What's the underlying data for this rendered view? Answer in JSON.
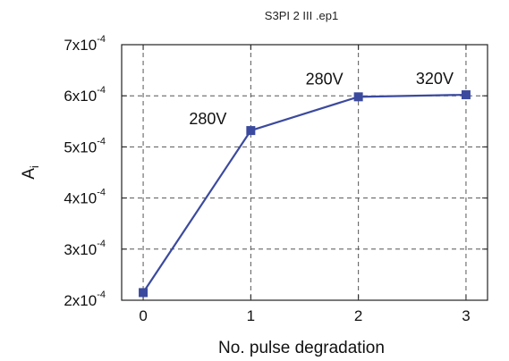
{
  "chart_data": {
    "type": "line",
    "title": "S3PI 2 III .ep1",
    "xlabel": "No. pulse degradation",
    "ylabel": "A",
    "ylabel_sub": "i",
    "x": [
      0,
      1,
      2,
      3
    ],
    "series": [
      {
        "values": [
          0.000215,
          0.000532,
          0.000598,
          0.000602
        ]
      }
    ],
    "xlim": [
      -0.2,
      3.2
    ],
    "ylim": [
      0.0002,
      0.0007
    ],
    "xticks": [
      0,
      1,
      2,
      3
    ],
    "yticks": [
      {
        "value": 0.0002,
        "mantissa": "2x10",
        "exp": "-4"
      },
      {
        "value": 0.0003,
        "mantissa": "3x10",
        "exp": "-4"
      },
      {
        "value": 0.0004,
        "mantissa": "4x10",
        "exp": "-4"
      },
      {
        "value": 0.0005,
        "mantissa": "5x10",
        "exp": "-4"
      },
      {
        "value": 0.0006,
        "mantissa": "6x10",
        "exp": "-4"
      },
      {
        "value": 0.0007,
        "mantissa": "7x10",
        "exp": "-4"
      }
    ],
    "annotations": [
      {
        "text": "280V",
        "x": 1,
        "y": 0.000532
      },
      {
        "text": "280V",
        "x": 2,
        "y": 0.000598
      },
      {
        "text": "320V",
        "x": 3,
        "y": 0.000602
      }
    ],
    "grid": true,
    "line_color": "#3b4a9e"
  }
}
